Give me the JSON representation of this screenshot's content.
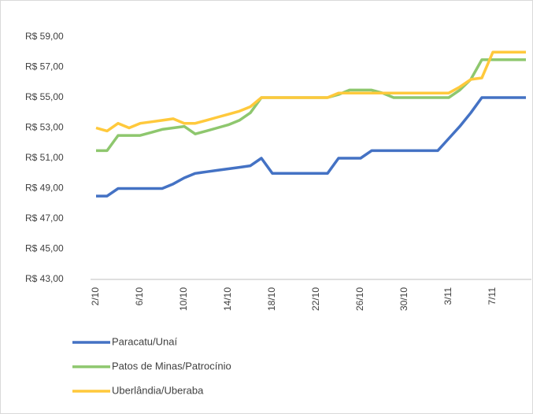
{
  "chart_data": {
    "type": "line",
    "categories": [
      "2/10",
      null,
      null,
      null,
      "6/10",
      null,
      null,
      null,
      "10/10",
      null,
      null,
      null,
      "14/10",
      null,
      null,
      null,
      "18/10",
      null,
      null,
      null,
      "22/10",
      null,
      null,
      null,
      "26/10",
      null,
      null,
      null,
      "30/10",
      null,
      null,
      null,
      "3/11",
      null,
      null,
      null,
      "7/11",
      null,
      null,
      null
    ],
    "series": [
      {
        "name": "Paracatu/Unaí",
        "color": "#4472c4",
        "values": [
          48.5,
          48.5,
          49,
          49,
          49,
          49,
          49,
          49.3,
          49.7,
          50,
          50.1,
          50.2,
          50.3,
          50.4,
          50.5,
          51,
          50,
          50,
          50,
          50,
          50,
          50,
          51,
          51,
          51,
          51.5,
          51.5,
          51.5,
          51.5,
          51.5,
          51.5,
          51.5,
          52.3,
          53.1,
          54,
          55,
          55,
          55,
          55,
          55
        ]
      },
      {
        "name": "Patos de Minas/Patrocínio",
        "color": "#8ec76e",
        "values": [
          51.5,
          51.5,
          52.5,
          52.5,
          52.5,
          52.7,
          52.9,
          53,
          53.1,
          52.6,
          52.8,
          53,
          53.2,
          53.5,
          54,
          55,
          55,
          55,
          55,
          55,
          55,
          55,
          55.2,
          55.5,
          55.5,
          55.5,
          55.3,
          55,
          55,
          55,
          55,
          55,
          55,
          55.5,
          56.2,
          57.5,
          57.5,
          57.5,
          57.5,
          57.5
        ]
      },
      {
        "name": "Uberlândia/Uberaba",
        "color": "#ffc93c",
        "values": [
          53,
          52.8,
          53.3,
          53,
          53.3,
          53.4,
          53.5,
          53.6,
          53.3,
          53.3,
          53.5,
          53.7,
          53.9,
          54.1,
          54.4,
          55,
          55,
          55,
          55,
          55,
          55,
          55,
          55.3,
          55.3,
          55.3,
          55.3,
          55.3,
          55.3,
          55.3,
          55.3,
          55.3,
          55.3,
          55.3,
          55.7,
          56.2,
          56.3,
          58,
          58,
          58,
          58
        ]
      }
    ],
    "ylim": [
      43,
      59
    ],
    "yticks": [
      {
        "value": 43,
        "label": "R$ 43,00"
      },
      {
        "value": 45,
        "label": "R$ 45,00"
      },
      {
        "value": 47,
        "label": "R$ 47,00"
      },
      {
        "value": 49,
        "label": "R$ 49,00"
      },
      {
        "value": 51,
        "label": "R$ 51,00"
      },
      {
        "value": 53,
        "label": "R$ 53,00"
      },
      {
        "value": 55,
        "label": "R$ 55,00"
      },
      {
        "value": 57,
        "label": "R$ 57,00"
      },
      {
        "value": 59,
        "label": "R$ 59,00"
      }
    ],
    "grid": false
  }
}
